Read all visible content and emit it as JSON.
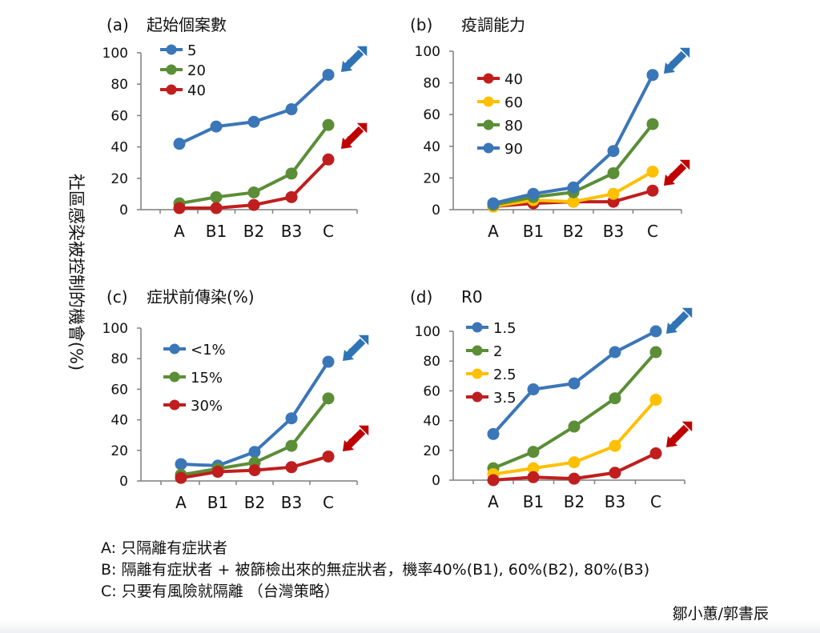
{
  "y_axis_label": "社區感染被控制的機會(%)",
  "colors": {
    "blue": "#3B76B8",
    "green": "#5B8E36",
    "red": "#C01E1E",
    "yellow": "#FFC000",
    "arrow_blue": "#2E74B5",
    "arrow_red": "#C00000"
  },
  "chart_data": [
    {
      "type": "line",
      "panel": "(a)",
      "title": "起始個案數",
      "categories": [
        "A",
        "B1",
        "B2",
        "B3",
        "C"
      ],
      "ylim": [
        0,
        100
      ],
      "yticks": [
        0,
        20,
        40,
        60,
        80,
        100
      ],
      "grid": false,
      "legend": "top-left",
      "series": [
        {
          "name": "5",
          "color": "#3B76B8",
          "values": [
            42,
            53,
            56,
            64,
            86
          ]
        },
        {
          "name": "20",
          "color": "#5B8E36",
          "values": [
            4,
            8,
            11,
            23,
            54
          ]
        },
        {
          "name": "40",
          "color": "#C01E1E",
          "values": [
            1,
            1,
            3,
            8,
            32
          ]
        }
      ]
    },
    {
      "type": "line",
      "panel": "(b)",
      "title": "疫調能力",
      "categories": [
        "A",
        "B1",
        "B2",
        "B3",
        "C"
      ],
      "ylim": [
        0,
        100
      ],
      "yticks": [
        0,
        20,
        40,
        60,
        80,
        100
      ],
      "grid": false,
      "legend": "top-left",
      "series": [
        {
          "name": "40",
          "color": "#C01E1E",
          "values": [
            2,
            4,
            5,
            5,
            12
          ]
        },
        {
          "name": "60",
          "color": "#FFC000",
          "values": [
            2,
            6,
            5,
            10,
            24
          ]
        },
        {
          "name": "80",
          "color": "#5B8E36",
          "values": [
            3,
            8,
            11,
            23,
            54
          ]
        },
        {
          "name": "90",
          "color": "#3B76B8",
          "values": [
            4,
            10,
            14,
            37,
            85
          ]
        }
      ]
    },
    {
      "type": "line",
      "panel": "(c)",
      "title": "症狀前傳染(%)",
      "categories": [
        "A",
        "B1",
        "B2",
        "B3",
        "C"
      ],
      "ylim": [
        0,
        100
      ],
      "yticks": [
        0,
        20,
        40,
        60,
        80,
        100
      ],
      "grid": false,
      "legend": "top-left",
      "series": [
        {
          "name": "<1%",
          "color": "#3B76B8",
          "values": [
            11,
            10,
            19,
            41,
            78
          ]
        },
        {
          "name": "15%",
          "color": "#5B8E36",
          "values": [
            4,
            8,
            12,
            23,
            54
          ]
        },
        {
          "name": "30%",
          "color": "#C01E1E",
          "values": [
            2,
            6,
            7,
            9,
            16
          ]
        }
      ]
    },
    {
      "type": "line",
      "panel": "(d)",
      "title": "R0",
      "categories": [
        "A",
        "B1",
        "B2",
        "B3",
        "C"
      ],
      "ylim": [
        0,
        100
      ],
      "yticks": [
        0,
        20,
        40,
        60,
        80,
        100
      ],
      "grid": false,
      "legend": "top-left",
      "series": [
        {
          "name": "1.5",
          "color": "#3B76B8",
          "values": [
            31,
            61,
            65,
            86,
            100
          ]
        },
        {
          "name": "2",
          "color": "#5B8E36",
          "values": [
            8,
            19,
            36,
            55,
            86
          ]
        },
        {
          "name": "2.5",
          "color": "#FFC000",
          "values": [
            4,
            8,
            12,
            23,
            54
          ]
        },
        {
          "name": "3.5",
          "color": "#C01E1E",
          "values": [
            0,
            2,
            1,
            5,
            18
          ]
        }
      ]
    }
  ],
  "notes": [
    "A: 只隔離有症狀者",
    "B: 隔離有症狀者 + 被篩檢出來的無症狀者，機率40%(B1), 60%(B2), 80%(B3)",
    "C: 只要有風險就隔離 （台灣策略）"
  ],
  "credit": "鄒小蕙/郭書辰"
}
